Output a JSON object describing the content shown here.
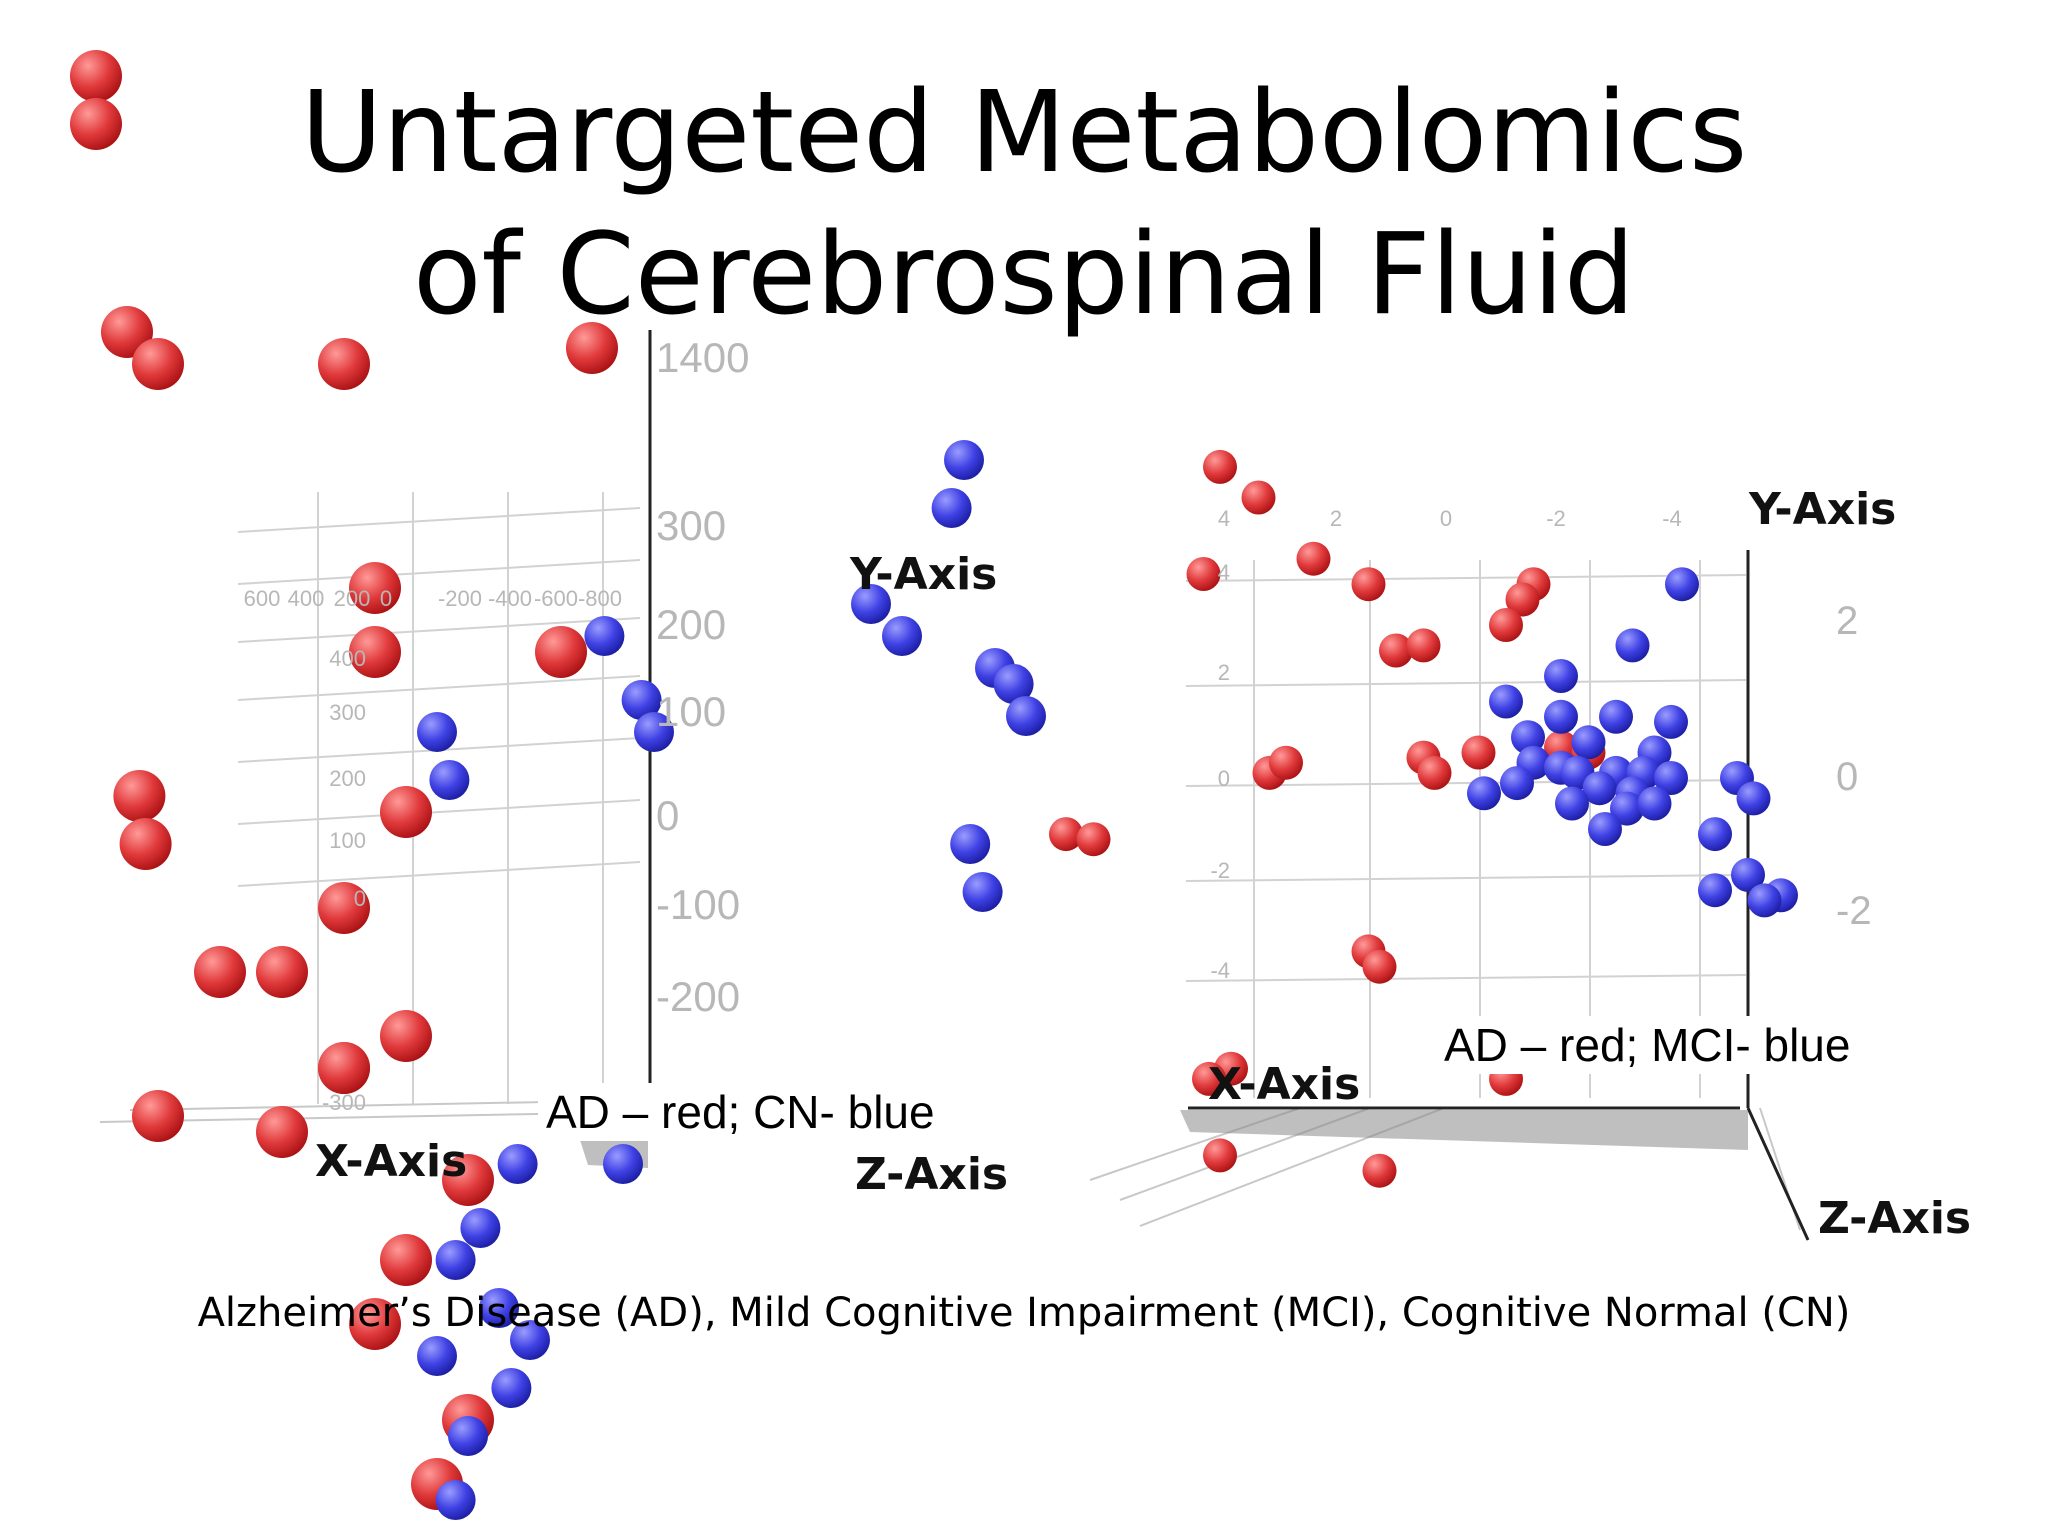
{
  "slide": {
    "title_line1": "Untargeted Metabolomics",
    "title_line2": "of Cerebrospinal Fluid",
    "caption": "Alzheimer’s Disease (AD), Mild Cognitive Impairment (MCI), Cognitive Normal (CN)"
  },
  "colors": {
    "red": "#e0393b",
    "blue": "#3f41e4",
    "axis": "#222222",
    "grid": "#d2d2d2",
    "tick": "#b7b7b7"
  },
  "chart_data": [
    {
      "type": "scatter",
      "legend_text": "AD – red; CN- blue",
      "axis_labels": {
        "y": "Y-Axis",
        "x": "X-Axis",
        "z": "Z-Axis"
      },
      "y_ticks": [
        "1400",
        "300",
        "200",
        "100",
        "0",
        "-100",
        "-200"
      ],
      "top_ticks": [
        "600",
        "400",
        "200",
        "0",
        "-200",
        "-400",
        "-600",
        "-800"
      ],
      "left_ticks": [
        "400",
        "300",
        "200",
        "100",
        "0",
        "-300"
      ],
      "series": [
        {
          "color": "red",
          "values": [
            [
              -7,
              300
            ],
            [
              -7,
              285
            ],
            [
              -6.5,
              220
            ],
            [
              -6,
              210
            ],
            [
              -3,
              210
            ],
            [
              1,
              215
            ],
            [
              -2.5,
              140
            ],
            [
              -2.5,
              120
            ],
            [
              -6.3,
              75
            ],
            [
              -6.2,
              60
            ],
            [
              -2,
              70
            ],
            [
              -3,
              40
            ],
            [
              -4,
              20
            ],
            [
              -5,
              20
            ],
            [
              -2,
              0
            ],
            [
              -3,
              -10
            ],
            [
              -6,
              -25
            ],
            [
              -4,
              -30
            ],
            [
              -1,
              -45
            ],
            [
              -2,
              -70
            ],
            [
              -2.5,
              -90
            ],
            [
              -1,
              -120
            ],
            [
              -1.5,
              -140
            ],
            [
              -3,
              -10
            ],
            [
              0.5,
              120
            ]
          ]
        },
        {
          "color": "blue",
          "values": [
            [
              7,
              180
            ],
            [
              6.8,
              165
            ],
            [
              5.5,
              135
            ],
            [
              6,
              125
            ],
            [
              7.5,
              115
            ],
            [
              7.8,
              110
            ],
            [
              8,
              100
            ],
            [
              7.1,
              60
            ],
            [
              7.3,
              45
            ],
            [
              1.2,
              125
            ],
            [
              1.8,
              105
            ],
            [
              2,
              95
            ],
            [
              -1.5,
              95
            ],
            [
              -1.3,
              80
            ],
            [
              1.5,
              -40
            ],
            [
              -0.2,
              -40
            ],
            [
              -0.8,
              -60
            ],
            [
              -1.2,
              -70
            ],
            [
              -0.5,
              -85
            ],
            [
              -1.5,
              -100
            ],
            [
              0,
              -95
            ],
            [
              -0.3,
              -110
            ],
            [
              -1,
              -125
            ],
            [
              -1.2,
              -145
            ]
          ]
        }
      ]
    },
    {
      "type": "scatter",
      "legend_text": "AD – red; MCI- blue",
      "axis_labels": {
        "y": "Y-Axis",
        "x": "X-Axis",
        "z": "Z-Axis"
      },
      "y_ticks": [
        "2",
        "0",
        "-2"
      ],
      "top_ticks": [
        "4",
        "2",
        "0",
        "-2",
        "-4"
      ],
      "left_ticks": [
        "4",
        "2",
        "0",
        "-2",
        "-4"
      ],
      "series": [
        {
          "color": "red",
          "values": [
            [
              -5.2,
              6.1
            ],
            [
              -4.5,
              5.5
            ],
            [
              -3.5,
              4.3
            ],
            [
              -5.5,
              4.0
            ],
            [
              -2.5,
              3.8
            ],
            [
              0.5,
              3.8
            ],
            [
              0.3,
              3.5
            ],
            [
              0,
              3.0
            ],
            [
              -2,
              2.5
            ],
            [
              -1.5,
              2.6
            ],
            [
              -4.3,
              0.1
            ],
            [
              -4,
              0.3
            ],
            [
              -1.5,
              0.4
            ],
            [
              -1.3,
              0.1
            ],
            [
              -0.5,
              0.5
            ],
            [
              1,
              0.6
            ],
            [
              1.5,
              0.5
            ],
            [
              -8,
              -1.1
            ],
            [
              -7.5,
              -1.2
            ],
            [
              -2.5,
              -3.4
            ],
            [
              -2.3,
              -3.7
            ],
            [
              -5,
              -5.7
            ],
            [
              -5.4,
              -5.9
            ],
            [
              0,
              -5.4
            ],
            [
              0,
              -5.9
            ],
            [
              -5.2,
              -7.4
            ],
            [
              -2.3,
              -7.7
            ]
          ]
        },
        {
          "color": "blue",
          "values": [
            [
              3.2,
              3.8
            ],
            [
              2.3,
              2.6
            ],
            [
              1,
              2
            ],
            [
              0,
              1.5
            ],
            [
              1,
              1.2
            ],
            [
              2,
              1.2
            ],
            [
              3,
              1.1
            ],
            [
              0.4,
              0.8
            ],
            [
              1.5,
              0.7
            ],
            [
              2.7,
              0.5
            ],
            [
              0.5,
              0.3
            ],
            [
              1,
              0.2
            ],
            [
              1.3,
              0.1
            ],
            [
              2,
              0.1
            ],
            [
              2.5,
              0.1
            ],
            [
              3,
              0
            ],
            [
              0.2,
              -0.1
            ],
            [
              1.7,
              -0.2
            ],
            [
              2.3,
              -0.3
            ],
            [
              -0.4,
              -0.3
            ],
            [
              1.2,
              -0.5
            ],
            [
              2.2,
              -0.6
            ],
            [
              2.7,
              -0.5
            ],
            [
              1.8,
              -1
            ],
            [
              4.2,
              0
            ],
            [
              4.5,
              -0.4
            ],
            [
              3.8,
              -1.1
            ],
            [
              4.4,
              -1.9
            ],
            [
              5,
              -2.3
            ],
            [
              4.7,
              -2.4
            ],
            [
              3.8,
              -2.2
            ]
          ]
        }
      ]
    }
  ]
}
